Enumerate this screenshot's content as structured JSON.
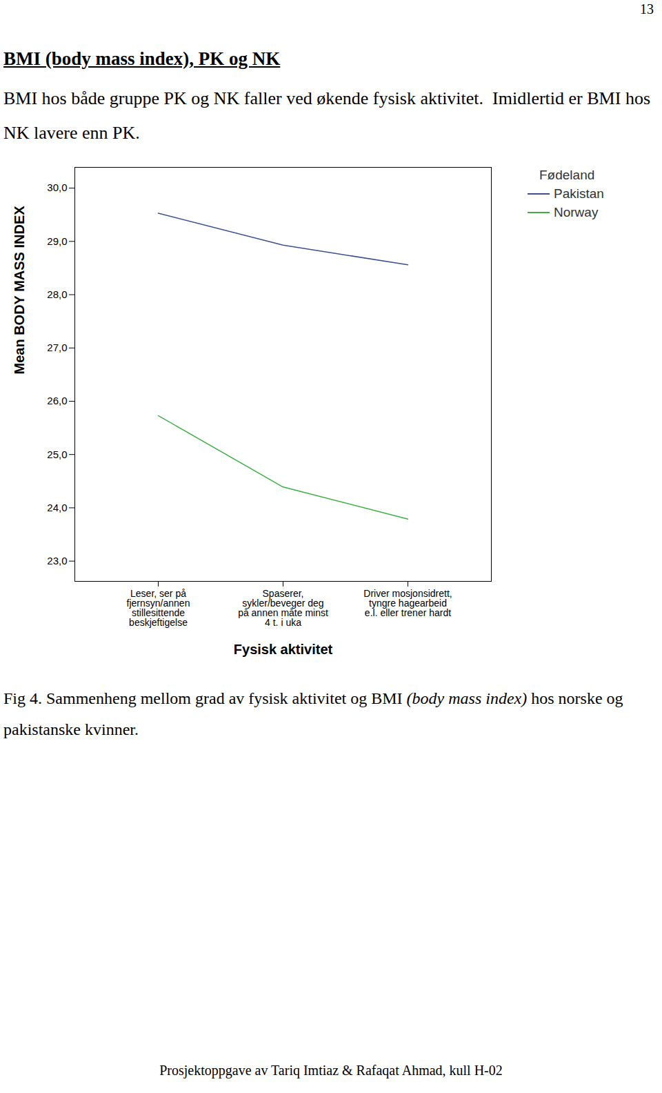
{
  "page_number": "13",
  "heading": "BMI (body mass index), PK og NK",
  "paragraph": "BMI hos både gruppe PK og NK faller ved økende fysisk aktivitet.  Imidlertid er BMI hos NK lavere enn PK.",
  "chart_data": {
    "type": "line",
    "x_label": "Fysisk aktivitet",
    "y_label": "Mean BODY MASS INDEX",
    "categories": [
      "Leser, ser på fjernsyn/annen stillesittende beskjeftigelse",
      "Spaserer, sykler/beveger deg på annen måte minst 4 t. i uka",
      "Driver mosjonsidrett, tyngre hagearbeid e.l. eller trener hardt"
    ],
    "legend_title": "Fødeland",
    "legend": "right",
    "series": [
      {
        "name": "Pakistan",
        "color": "#3d4f8f",
        "values": [
          29.53,
          28.93,
          28.56
        ]
      },
      {
        "name": "Norway",
        "color": "#3cb043",
        "values": [
          25.73,
          24.39,
          23.79
        ]
      }
    ],
    "ylim": [
      22.62,
      30.39
    ],
    "yticks": [
      {
        "value": 23,
        "label": "23,0"
      },
      {
        "value": 24,
        "label": "24,0"
      },
      {
        "value": 25,
        "label": "25,0"
      },
      {
        "value": 26,
        "label": "26,0"
      },
      {
        "value": 27,
        "label": "27,0"
      },
      {
        "value": 28,
        "label": "28,0"
      },
      {
        "value": 29,
        "label": "29,0"
      },
      {
        "value": 30,
        "label": "30,0"
      }
    ]
  },
  "caption": [
    {
      "text": "Fig 4. Sammenheng mellom grad av fysisk aktivitet og BMI "
    },
    {
      "text": "(body mass index)",
      "italic": true
    },
    {
      "text": " hos norske og pakistanske kvinner."
    }
  ],
  "footer": "Prosjektoppgave av Tariq Imtiaz & Rafaqat Ahmad, kull H-02"
}
